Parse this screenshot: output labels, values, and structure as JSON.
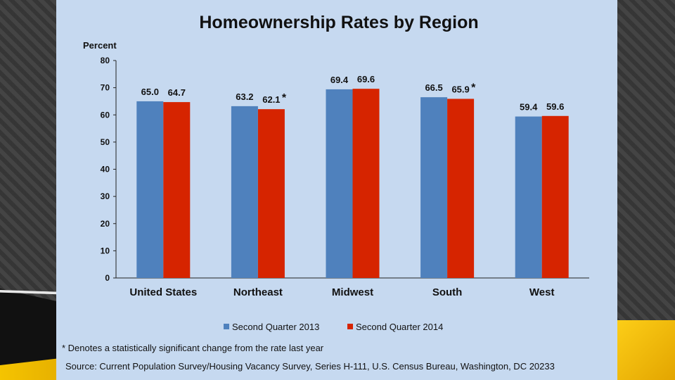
{
  "chart_data": {
    "type": "bar",
    "title": "Homeownership Rates by Region",
    "ylabel": "Percent",
    "xlabel": "",
    "ylim": [
      0,
      80
    ],
    "yticks": [
      0,
      10,
      20,
      30,
      40,
      50,
      60,
      70,
      80
    ],
    "categories": [
      "United States",
      "Northeast",
      "Midwest",
      "South",
      "West"
    ],
    "series": [
      {
        "name": "Second Quarter 2013",
        "color": "#4f81bd",
        "values": [
          65.0,
          63.2,
          69.4,
          66.5,
          59.4
        ],
        "labels": [
          "65.0",
          "63.2",
          "69.4",
          "66.5",
          "59.4"
        ]
      },
      {
        "name": "Second Quarter 2014",
        "color": "#d62400",
        "values": [
          64.7,
          62.1,
          69.6,
          65.9,
          59.6
        ],
        "labels": [
          "64.7",
          "62.1",
          "69.6",
          "65.9",
          "59.6"
        ]
      }
    ],
    "significance_marker": "*",
    "significant": [
      false,
      true,
      false,
      true,
      false
    ],
    "legend_position": "bottom",
    "grid": false,
    "footnote": "* Denotes a statistically significant change from the rate last year",
    "source": "Source: Current Population Survey/Housing Vacancy Survey,  Series H-111, U.S. Census Bureau, Washington, DC 20233"
  }
}
